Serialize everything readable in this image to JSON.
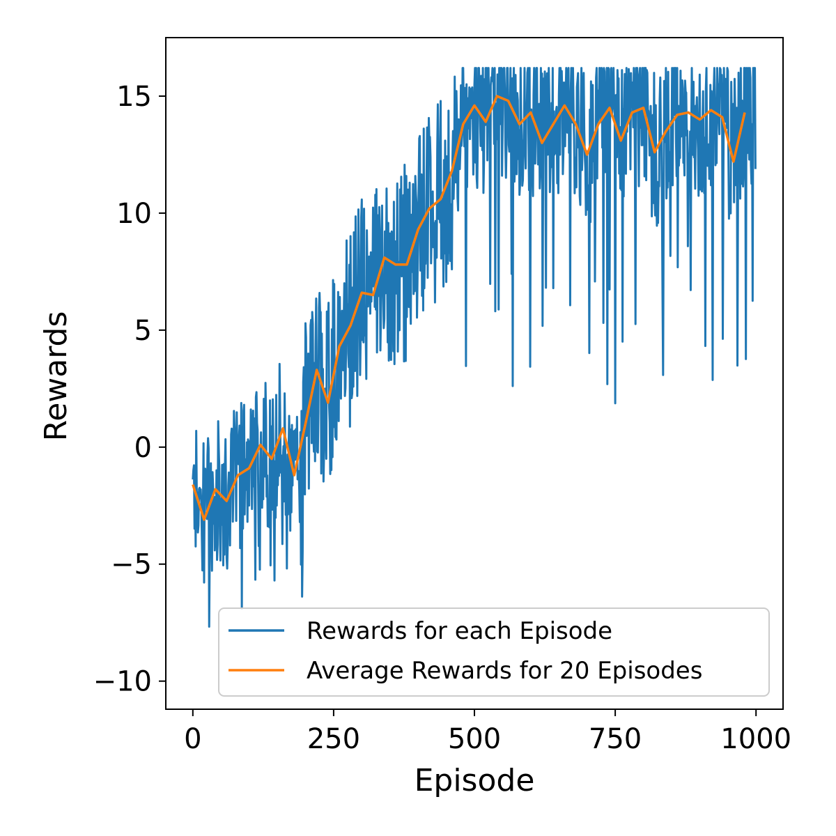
{
  "chart_data": {
    "type": "line",
    "title": "",
    "xlabel": "Episode",
    "ylabel": "Rewards",
    "xlim": [
      -48,
      1048
    ],
    "ylim": [
      -11.2,
      17.5
    ],
    "xticks": [
      0,
      250,
      500,
      750,
      1000
    ],
    "yticks": [
      -10,
      -5,
      0,
      5,
      10,
      15
    ],
    "xtick_labels": [
      "0",
      "250",
      "500",
      "750",
      "1000"
    ],
    "ytick_labels": [
      "−10",
      "−5",
      "0",
      "5",
      "10",
      "15"
    ],
    "grid": false,
    "legend_position": "lower-right",
    "colors": {
      "raw": "#1f77b4",
      "avg": "#ff7f0e"
    },
    "raw_series": {
      "name": "Rewards for each Episode",
      "episodes": 1000,
      "anchors_x": [
        0,
        20,
        40,
        60,
        80,
        100,
        120,
        140,
        160,
        180,
        200,
        220,
        240,
        260,
        280,
        300,
        320,
        340,
        360,
        380,
        400,
        420,
        440,
        460,
        480,
        500,
        520,
        540,
        560,
        580,
        600,
        620,
        640,
        660,
        680,
        700,
        720,
        740,
        760,
        780,
        800,
        820,
        840,
        860,
        880,
        900,
        920,
        940,
        960,
        980,
        999
      ],
      "anchors_y": [
        -1.6,
        -3.1,
        -1.8,
        -2.3,
        -1.2,
        -0.9,
        0.1,
        -0.5,
        0.8,
        -1.2,
        1.0,
        3.3,
        1.9,
        4.3,
        5.2,
        6.6,
        6.5,
        8.1,
        7.8,
        7.8,
        9.3,
        10.2,
        10.6,
        11.8,
        13.8,
        14.6,
        13.9,
        15.0,
        14.8,
        13.8,
        14.3,
        13.0,
        13.8,
        14.6,
        13.8,
        12.5,
        13.8,
        14.5,
        13.1,
        14.3,
        14.5,
        12.6,
        13.5,
        14.2,
        14.3,
        14.0,
        14.4,
        14.1,
        12.2,
        14.3,
        14.5
      ],
      "cap": 16.2,
      "min": -9.8,
      "max": 16.2
    },
    "series": [
      {
        "name": "Average Rewards for 20 Episodes",
        "x": [
          0,
          20,
          40,
          60,
          80,
          100,
          120,
          140,
          160,
          180,
          200,
          220,
          240,
          260,
          280,
          300,
          320,
          340,
          360,
          380,
          400,
          420,
          440,
          460,
          480,
          500,
          520,
          540,
          560,
          580,
          600,
          620,
          640,
          660,
          680,
          700,
          720,
          740,
          760,
          780,
          800,
          820,
          840,
          860,
          880,
          900,
          920,
          940,
          960,
          980
        ],
        "values": [
          -1.6,
          -3.1,
          -1.8,
          -2.3,
          -1.2,
          -0.9,
          0.1,
          -0.5,
          0.8,
          -1.2,
          1.0,
          3.3,
          1.9,
          4.3,
          5.2,
          6.6,
          6.5,
          8.1,
          7.8,
          7.8,
          9.3,
          10.2,
          10.6,
          11.8,
          13.8,
          14.6,
          13.9,
          15.0,
          14.8,
          13.8,
          14.3,
          13.0,
          13.8,
          14.6,
          13.8,
          12.5,
          13.8,
          14.5,
          13.1,
          14.3,
          14.5,
          12.6,
          13.5,
          14.2,
          14.3,
          14.0,
          14.4,
          14.1,
          12.2,
          14.3
        ]
      }
    ]
  }
}
